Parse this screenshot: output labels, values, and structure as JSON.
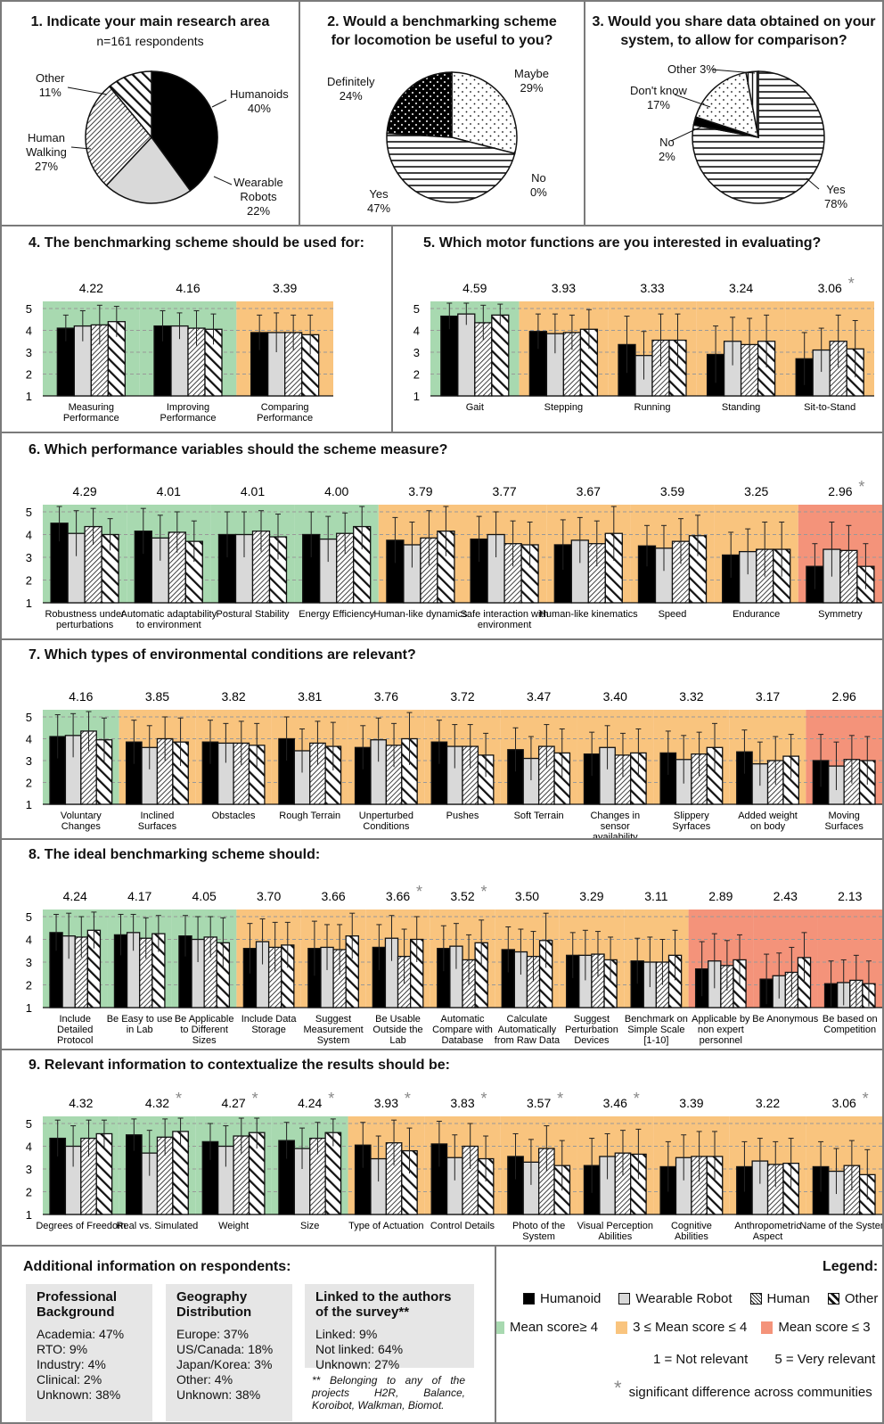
{
  "colors": {
    "green": "#a8d9b0",
    "orange": "#f9c47e",
    "red": "#f4937a",
    "gray": "#d9d9d9",
    "black": "#000000"
  },
  "panel1": {
    "title": "1. Indicate your main research area",
    "note": "n=161 respondents",
    "labels": [
      {
        "name": "Humanoids",
        "pct": "40%"
      },
      {
        "name": "Wearable Robots",
        "pct": "22%"
      },
      {
        "name": "Human Walking",
        "pct": "27%"
      },
      {
        "name": "Other",
        "pct": "11%"
      }
    ]
  },
  "panel2": {
    "title": "2. Would a benchmarking scheme for locomotion be useful to you?",
    "labels": [
      {
        "name": "Maybe",
        "pct": "29%"
      },
      {
        "name": "No",
        "pct": "0%"
      },
      {
        "name": "Yes",
        "pct": "47%"
      },
      {
        "name": "Definitely",
        "pct": "24%"
      }
    ]
  },
  "panel3": {
    "title": "3. Would you share data obtained on your system,  to allow for comparison?",
    "labels": [
      {
        "name": "Yes",
        "pct": "78%"
      },
      {
        "name": "No",
        "pct": "2%"
      },
      {
        "name": "Don't know",
        "pct": "17%"
      },
      {
        "name": "Other",
        "pct": "3%"
      }
    ]
  },
  "panel4": {
    "title": "4. The benchmarking scheme should be used for:"
  },
  "panel5": {
    "title": "5. Which motor functions are you interested in evaluating?"
  },
  "panel6": {
    "title": "6. Which performance variables should the scheme measure?"
  },
  "panel7": {
    "title": "7. Which types of environmental conditions are relevant?"
  },
  "panel8": {
    "title": "8. The ideal benchmarking scheme should:"
  },
  "panel9": {
    "title": "9. Relevant information to contextualize the results should be:"
  },
  "info": {
    "title": "Additional information on respondents:",
    "box1": {
      "head": "Professional Background",
      "rows": [
        "Academia: 47%",
        "RTO: 9%",
        "Industry: 4%",
        "Clinical: 2%",
        "Unknown: 38%"
      ]
    },
    "box2": {
      "head": "Geography Distribution",
      "rows": [
        "Europe: 37%",
        "US/Canada: 18%",
        "Japan/Korea: 3%",
        "Other: 4%",
        "Unknown: 38%"
      ]
    },
    "box3": {
      "head": "Linked to the authors of the survey**",
      "rows": [
        "Linked: 9%",
        "Not linked: 64%",
        "Unknown: 27%"
      ]
    },
    "footnote": "** Belonging to any of the projects H2R, Balance, Koroibot, Walkman, Biomot."
  },
  "legend": {
    "title": "Legend:",
    "humanoid": "Humanoid",
    "wearable": "Wearable Robot",
    "human": "Human",
    "other": "Other",
    "green": "Mean score≥ 4",
    "orange": "3 ≤ Mean score ≤ 4",
    "red": "Mean score ≤ 3",
    "scale_low": "1 = Not relevant",
    "scale_high": "5 = Very relevant",
    "star": "*",
    "sig": "significant difference across communities"
  },
  "chart_data": [
    {
      "id": "p1",
      "type": "pie",
      "categories": [
        "Humanoids",
        "Wearable Robots",
        "Human Walking",
        "Other"
      ],
      "values": [
        40,
        22,
        27,
        11
      ]
    },
    {
      "id": "p2",
      "type": "pie",
      "categories": [
        "Maybe",
        "No",
        "Yes",
        "Definitely"
      ],
      "values": [
        29,
        0,
        47,
        24
      ]
    },
    {
      "id": "p3",
      "type": "pie",
      "categories": [
        "Yes",
        "No",
        "Don't know",
        "Other"
      ],
      "values": [
        78,
        2,
        17,
        3
      ]
    },
    {
      "id": "c4",
      "type": "bar",
      "ylim": [
        1,
        5
      ],
      "categories": [
        "Measuring Performance",
        "Improving Performance",
        "Comparing Performance"
      ],
      "means": [
        "4.22",
        "4.16",
        "3.39"
      ],
      "stars": [
        false,
        false,
        false
      ],
      "bands": [
        "green",
        "green",
        "orange"
      ],
      "series": [
        {
          "name": "Humanoid",
          "values": [
            4.1,
            4.2,
            3.9
          ]
        },
        {
          "name": "Wearable Robot",
          "values": [
            4.2,
            4.2,
            3.9
          ]
        },
        {
          "name": "Human",
          "values": [
            4.25,
            4.1,
            3.9
          ]
        },
        {
          "name": "Other",
          "values": [
            4.4,
            4.05,
            3.8
          ]
        }
      ],
      "errors": [
        [
          0.6,
          0.7,
          0.9,
          0.7
        ],
        [
          0.7,
          0.6,
          0.8,
          0.7
        ],
        [
          0.8,
          0.9,
          0.8,
          0.9
        ]
      ]
    },
    {
      "id": "c5",
      "type": "bar",
      "ylim": [
        1,
        5
      ],
      "categories": [
        "Gait",
        "Stepping",
        "Running",
        "Standing",
        "Sit-to-Stand"
      ],
      "means": [
        "4.59",
        "3.93",
        "3.33",
        "3.24",
        "3.06"
      ],
      "stars": [
        false,
        false,
        false,
        false,
        true
      ],
      "bands": [
        "green",
        "orange",
        "orange",
        "orange",
        "orange"
      ],
      "series": [
        {
          "name": "Humanoid",
          "values": [
            4.65,
            3.95,
            3.35,
            2.9,
            2.7
          ]
        },
        {
          "name": "Wearable Robot",
          "values": [
            4.75,
            3.85,
            2.85,
            3.5,
            3.1
          ]
        },
        {
          "name": "Human",
          "values": [
            4.35,
            3.9,
            3.55,
            3.35,
            3.5
          ]
        },
        {
          "name": "Other",
          "values": [
            4.7,
            4.05,
            3.55,
            3.5,
            3.15
          ]
        }
      ],
      "errors": [
        [
          0.6,
          0.5,
          0.8,
          0.5
        ],
        [
          0.8,
          0.9,
          0.8,
          0.9
        ],
        [
          1.3,
          1.1,
          1.2,
          1.2
        ],
        [
          1.3,
          1.1,
          1.2,
          1.2
        ],
        [
          1.2,
          1.0,
          1.2,
          1.3
        ]
      ]
    },
    {
      "id": "c6",
      "type": "bar",
      "ylim": [
        1,
        5
      ],
      "categories": [
        "Robustness under perturbations",
        "Automatic adaptability to environment",
        "Postural Stability",
        "Energy Efficiency",
        "Human-like dynamics",
        "Safe interaction with environment",
        "Human-like kinematics",
        "Speed",
        "Endurance",
        "Symmetry"
      ],
      "means": [
        "4.29",
        "4.01",
        "4.01",
        "4.00",
        "3.79",
        "3.77",
        "3.67",
        "3.59",
        "3.25",
        "2.96"
      ],
      "stars": [
        false,
        false,
        false,
        false,
        false,
        false,
        false,
        false,
        false,
        true
      ],
      "bands": [
        "green",
        "green",
        "green",
        "green",
        "orange",
        "orange",
        "orange",
        "orange",
        "orange",
        "red"
      ],
      "series": [
        {
          "name": "Humanoid",
          "values": [
            4.5,
            4.15,
            4.0,
            4.0,
            3.75,
            3.8,
            3.55,
            3.5,
            3.1,
            2.6
          ]
        },
        {
          "name": "Wearable Robot",
          "values": [
            4.05,
            3.85,
            4.0,
            3.8,
            3.55,
            4.0,
            3.75,
            3.4,
            3.25,
            3.35
          ]
        },
        {
          "name": "Human",
          "values": [
            4.35,
            4.1,
            4.15,
            4.05,
            3.85,
            3.6,
            3.6,
            3.7,
            3.35,
            3.3
          ]
        },
        {
          "name": "Other",
          "values": [
            4.0,
            3.7,
            3.9,
            4.35,
            4.15,
            3.55,
            4.05,
            3.95,
            3.35,
            2.6
          ]
        }
      ],
      "errors": [
        [
          0.8,
          1.0,
          0.8,
          0.7
        ],
        [
          1.0,
          1.0,
          0.9,
          0.9
        ],
        [
          1.0,
          1.0,
          0.9,
          1.0
        ],
        [
          1.0,
          1.0,
          0.9,
          1.0
        ],
        [
          1.0,
          1.0,
          1.2,
          1.1
        ],
        [
          1.0,
          1.0,
          1.0,
          1.0
        ],
        [
          1.1,
          1.0,
          1.0,
          1.2
        ],
        [
          0.9,
          1.0,
          1.0,
          0.9
        ],
        [
          1.0,
          1.0,
          1.2,
          1.2
        ],
        [
          1.0,
          1.2,
          1.1,
          1.0
        ]
      ]
    },
    {
      "id": "c7",
      "type": "bar",
      "ylim": [
        1,
        5
      ],
      "categories": [
        "Voluntary Changes",
        "Inclined Surfaces",
        "Obstacles",
        "Rough Terrain",
        "Unperturbed Conditions",
        "Pushes",
        "Soft Terrain",
        "Changes in sensor availability",
        "Slippery Syrfaces",
        "Added weight on body",
        "Moving Surfaces"
      ],
      "means": [
        "4.16",
        "3.85",
        "3.82",
        "3.81",
        "3.76",
        "3.72",
        "3.47",
        "3.40",
        "3.32",
        "3.17",
        "2.96"
      ],
      "stars": [
        false,
        false,
        false,
        false,
        false,
        false,
        false,
        false,
        false,
        false,
        false
      ],
      "bands": [
        "green",
        "orange",
        "orange",
        "orange",
        "orange",
        "orange",
        "orange",
        "orange",
        "orange",
        "orange",
        "red"
      ],
      "series": [
        {
          "name": "Humanoid",
          "values": [
            4.1,
            3.85,
            3.85,
            4.0,
            3.6,
            3.85,
            3.5,
            3.3,
            3.35,
            3.4,
            3.0
          ]
        },
        {
          "name": "Wearable Robot",
          "values": [
            4.15,
            3.6,
            3.8,
            3.45,
            3.95,
            3.65,
            3.1,
            3.6,
            3.05,
            2.85,
            2.75
          ]
        },
        {
          "name": "Human",
          "values": [
            4.35,
            4.0,
            3.8,
            3.8,
            3.7,
            3.65,
            3.65,
            3.25,
            3.3,
            3.0,
            3.05
          ]
        },
        {
          "name": "Other",
          "values": [
            3.95,
            3.85,
            3.7,
            3.65,
            4.0,
            3.25,
            3.35,
            3.35,
            3.6,
            3.2,
            3.0
          ]
        }
      ],
      "errors": [
        [
          1.0,
          1.0,
          0.9,
          1.0
        ],
        [
          1.0,
          1.0,
          1.0,
          1.1
        ],
        [
          1.0,
          0.9,
          1.0,
          1.0
        ],
        [
          1.0,
          1.0,
          1.0,
          1.1
        ],
        [
          1.0,
          1.0,
          1.0,
          1.2
        ],
        [
          1.0,
          1.0,
          1.0,
          1.0
        ],
        [
          1.0,
          1.0,
          1.0,
          1.1
        ],
        [
          1.0,
          1.0,
          1.0,
          1.1
        ],
        [
          1.0,
          1.1,
          1.0,
          1.1
        ],
        [
          1.0,
          1.0,
          1.1,
          1.0
        ],
        [
          1.2,
          1.1,
          1.1,
          1.1
        ]
      ]
    },
    {
      "id": "c8",
      "type": "bar",
      "ylim": [
        1,
        5
      ],
      "categories": [
        "Include Detailed Protocol",
        "Be Easy to use in Lab",
        "Be Applicable to Different Sizes",
        "Include Data Storage",
        "Suggest Measurement System",
        "Be Usable Outside the Lab",
        "Automatic Compare with Database",
        "Calculate Automatically from Raw Data",
        "Suggest Perturbation Devices",
        "Benchmark on Simple Scale [1-10]",
        "Applicable by non expert personnel",
        "Be Anonymous",
        "Be based on Competition"
      ],
      "means": [
        "4.24",
        "4.17",
        "4.05",
        "3.70",
        "3.66",
        "3.66",
        "3.52",
        "3.50",
        "3.29",
        "3.11",
        "2.89",
        "2.43",
        "2.13"
      ],
      "stars": [
        false,
        false,
        false,
        false,
        false,
        true,
        true,
        false,
        false,
        false,
        false,
        false,
        false
      ],
      "bands": [
        "green",
        "green",
        "green",
        "orange",
        "orange",
        "orange",
        "orange",
        "orange",
        "orange",
        "orange",
        "red",
        "red",
        "red"
      ],
      "series": [
        {
          "name": "Humanoid",
          "values": [
            4.3,
            4.2,
            4.15,
            3.6,
            3.6,
            3.65,
            3.6,
            3.55,
            3.3,
            3.05,
            2.7,
            2.25,
            2.05
          ]
        },
        {
          "name": "Wearable Robot",
          "values": [
            4.15,
            4.3,
            4.0,
            3.9,
            3.65,
            4.05,
            3.7,
            3.45,
            3.3,
            3.0,
            3.05,
            2.4,
            2.1
          ]
        },
        {
          "name": "Human",
          "values": [
            4.1,
            4.05,
            4.1,
            3.65,
            3.55,
            3.25,
            3.1,
            3.25,
            3.35,
            3.0,
            2.85,
            2.55,
            2.2
          ]
        },
        {
          "name": "Other",
          "values": [
            4.4,
            4.25,
            3.85,
            3.75,
            4.15,
            4.0,
            3.85,
            3.95,
            3.1,
            3.3,
            3.1,
            3.2,
            2.05
          ]
        }
      ],
      "errors": [
        [
          0.8,
          1.0,
          0.9,
          0.8
        ],
        [
          0.9,
          0.8,
          0.9,
          0.8
        ],
        [
          0.9,
          1.0,
          0.9,
          1.1
        ],
        [
          1.1,
          1.0,
          1.1,
          1.0
        ],
        [
          1.2,
          1.0,
          1.1,
          1.0
        ],
        [
          1.0,
          1.0,
          1.2,
          1.0
        ],
        [
          1.0,
          1.0,
          1.1,
          1.0
        ],
        [
          1.0,
          1.0,
          1.1,
          1.2
        ],
        [
          1.0,
          1.1,
          1.0,
          1.0
        ],
        [
          1.0,
          1.1,
          1.0,
          1.1
        ],
        [
          1.2,
          1.2,
          1.1,
          1.1
        ],
        [
          1.1,
          1.0,
          1.1,
          1.1
        ],
        [
          1.0,
          1.0,
          1.1,
          1.0
        ]
      ]
    },
    {
      "id": "c9",
      "type": "bar",
      "ylim": [
        1,
        5
      ],
      "categories": [
        "Degrees of Freedom",
        "Real vs. Simulated",
        "Weight",
        "Size",
        "Type of Actuation",
        "Control Details",
        "Photo of the System",
        "Visual Perception Abilities",
        "Cognitive Abilities",
        "Anthropometric Aspect",
        "Name of the System"
      ],
      "means": [
        "4.32",
        "4.32",
        "4.27",
        "4.24",
        "3.93",
        "3.83",
        "3.57",
        "3.46",
        "3.39",
        "3.22",
        "3.06"
      ],
      "stars": [
        false,
        true,
        true,
        true,
        true,
        true,
        true,
        true,
        false,
        false,
        true
      ],
      "bands": [
        "green",
        "green",
        "green",
        "green",
        "orange",
        "orange",
        "orange",
        "orange",
        "orange",
        "orange",
        "orange"
      ],
      "series": [
        {
          "name": "Humanoid",
          "values": [
            4.35,
            4.5,
            4.2,
            4.25,
            4.05,
            4.1,
            3.55,
            3.15,
            3.1,
            3.1,
            3.1
          ]
        },
        {
          "name": "Wearable Robot",
          "values": [
            4.0,
            3.7,
            4.0,
            3.9,
            3.45,
            3.5,
            3.3,
            3.55,
            3.5,
            3.35,
            2.9
          ]
        },
        {
          "name": "Human",
          "values": [
            4.35,
            4.4,
            4.45,
            4.35,
            4.15,
            4.0,
            3.9,
            3.7,
            3.55,
            3.2,
            3.15
          ]
        },
        {
          "name": "Other",
          "values": [
            4.55,
            4.65,
            4.6,
            4.6,
            3.8,
            3.45,
            3.15,
            3.65,
            3.55,
            3.25,
            2.75
          ]
        }
      ],
      "errors": [
        [
          0.8,
          0.9,
          0.8,
          0.6
        ],
        [
          0.7,
          1.0,
          0.8,
          0.6
        ],
        [
          0.8,
          0.9,
          0.8,
          0.7
        ],
        [
          0.8,
          0.9,
          0.7,
          0.6
        ],
        [
          1.0,
          1.0,
          1.0,
          1.0
        ],
        [
          1.0,
          1.0,
          1.0,
          1.0
        ],
        [
          1.0,
          1.0,
          1.0,
          1.1
        ],
        [
          1.2,
          1.0,
          1.0,
          1.1
        ],
        [
          1.1,
          1.0,
          1.1,
          1.1
        ],
        [
          1.1,
          1.0,
          1.0,
          1.1
        ],
        [
          1.1,
          1.0,
          1.1,
          1.1
        ]
      ]
    }
  ]
}
